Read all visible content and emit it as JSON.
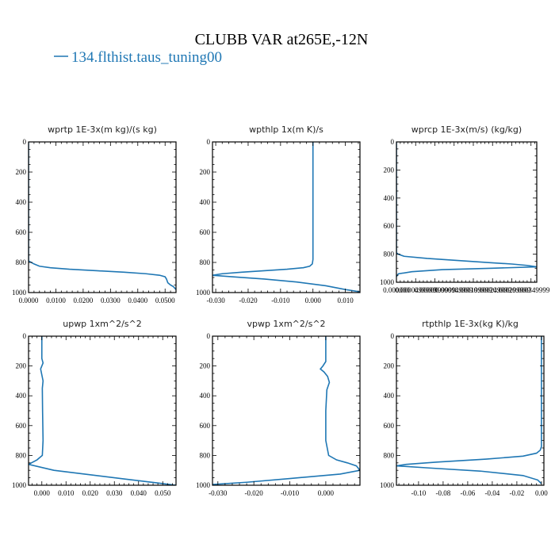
{
  "figure": {
    "title": "CLUBB VAR at265E,-12N",
    "legend": [
      {
        "label": "134.flthist.taus_tuning00",
        "color": "#1f77b4"
      }
    ]
  },
  "chart_data": [
    {
      "type": "line",
      "title": "wprtp  1E-3x(m kg)/(s kg)",
      "xlim": [
        0.0,
        0.054
      ],
      "ylim": [
        1000,
        0
      ],
      "xticks": [
        0.0,
        0.01,
        0.02,
        0.03,
        0.04,
        0.05
      ],
      "xtick_labels": [
        "0.0000",
        "0.0100",
        "0.0200",
        "0.0300",
        "0.0400",
        "0.0500"
      ],
      "yticks": [
        0,
        200,
        400,
        600,
        800,
        1000
      ],
      "series": [
        {
          "color": "#1f77b4",
          "x": [
            0.0,
            0.0,
            0.002,
            0.004,
            0.008,
            0.015,
            0.025,
            0.035,
            0.043,
            0.048,
            0.05,
            0.0505,
            0.051,
            0.052,
            0.053,
            0.054
          ],
          "y": [
            0,
            790,
            810,
            825,
            835,
            845,
            855,
            865,
            875,
            885,
            895,
            910,
            935,
            950,
            960,
            980
          ]
        }
      ]
    },
    {
      "type": "line",
      "title": "wpthlp  1x(m K)/s",
      "xlim": [
        -0.031,
        0.0145
      ],
      "ylim": [
        1000,
        0
      ],
      "xticks": [
        -0.03,
        -0.02,
        -0.01,
        0.0,
        0.01
      ],
      "xtick_labels": [
        "-0.030",
        "-0.020",
        "-0.010",
        "0.000",
        "0.010"
      ],
      "yticks": [
        0,
        200,
        400,
        600,
        800,
        1000
      ],
      "series": [
        {
          "color": "#1f77b4",
          "x": [
            0.0,
            0.0,
            -0.0002,
            -0.001,
            -0.003,
            -0.008,
            -0.015,
            -0.022,
            -0.028,
            -0.031,
            -0.025,
            -0.015,
            -0.005,
            0.004,
            0.01,
            0.0145
          ],
          "y": [
            0,
            780,
            810,
            825,
            835,
            845,
            855,
            865,
            875,
            885,
            895,
            910,
            930,
            955,
            980,
            995
          ]
        }
      ]
    },
    {
      "type": "line",
      "title": "wprcp  1E-3x(m/s) (kg/kg)",
      "xlim": [
        0.0,
        0.000365
      ],
      "ylim": [
        1000,
        0
      ],
      "xticks": [
        0.0,
        5e-05,
        0.0001,
        0.00015,
        0.0002,
        0.00025,
        0.0003,
        0.00035
      ],
      "xtick_labels": [
        "0.000000",
        "0.0000499999",
        "0.0000999999",
        "0.000149999",
        "0.000199999",
        "0.000249999",
        "0.000299999",
        "0.000349999"
      ],
      "yticks": [
        0,
        200,
        400,
        600,
        800,
        1000
      ],
      "series": [
        {
          "color": "#1f77b4",
          "x": [
            0.0,
            0.0,
            5e-06,
            2e-05,
            8e-05,
            0.00016,
            0.00024,
            0.0003,
            0.00034,
            0.000365,
            0.00025,
            0.00012,
            4e-05,
            5e-06,
            0.0
          ],
          "y": [
            0,
            790,
            800,
            815,
            830,
            845,
            860,
            870,
            880,
            890,
            900,
            910,
            925,
            940,
            960
          ]
        }
      ]
    },
    {
      "type": "line",
      "title": "upwp  1xm^2/s^2",
      "xlim": [
        -0.0055,
        0.0555
      ],
      "ylim": [
        1000,
        0
      ],
      "xticks": [
        0.0,
        0.01,
        0.02,
        0.03,
        0.04,
        0.05
      ],
      "xtick_labels": [
        "0.000",
        "0.010",
        "0.020",
        "0.030",
        "0.040",
        "0.050"
      ],
      "yticks": [
        0,
        200,
        400,
        600,
        800,
        1000
      ],
      "series": [
        {
          "color": "#1f77b4",
          "x": [
            0.0,
            0.0,
            0.0005,
            0.0,
            -0.0005,
            0.0,
            0.0005,
            0.0002,
            0.0003,
            0.0005,
            0.0002,
            -0.002,
            -0.0055,
            0.005,
            0.02,
            0.035,
            0.048,
            0.0555
          ],
          "y": [
            0,
            150,
            180,
            200,
            220,
            260,
            300,
            350,
            500,
            700,
            800,
            830,
            860,
            900,
            930,
            960,
            985,
            1000
          ]
        }
      ]
    },
    {
      "type": "line",
      "title": "vpwp  1xm^2/s^2",
      "xlim": [
        -0.0315,
        0.0095
      ],
      "ylim": [
        1000,
        0
      ],
      "xticks": [
        -0.03,
        -0.02,
        -0.01,
        0.0
      ],
      "xtick_labels": [
        "-0.030",
        "-0.020",
        "-0.010",
        "0.000"
      ],
      "yticks": [
        0,
        200,
        400,
        600,
        800,
        1000
      ],
      "series": [
        {
          "color": "#1f77b4",
          "x": [
            0.0,
            0.0,
            -0.0008,
            -0.0015,
            -0.0005,
            0.0005,
            0.001,
            0.0003,
            0.0,
            0.0,
            0.0008,
            0.003,
            0.006,
            0.0085,
            0.0095,
            0.004,
            -0.01,
            -0.022,
            -0.0315
          ],
          "y": [
            0,
            170,
            200,
            220,
            240,
            270,
            310,
            360,
            500,
            700,
            800,
            830,
            850,
            870,
            900,
            925,
            955,
            980,
            995
          ]
        }
      ]
    },
    {
      "type": "line",
      "title": "rtpthlp  1E-3x(kg K)/kg",
      "xlim": [
        -0.118,
        0.002
      ],
      "ylim": [
        1000,
        0
      ],
      "xticks": [
        -0.1,
        -0.08,
        -0.06,
        -0.04,
        -0.02,
        0.0
      ],
      "xtick_labels": [
        "-0.10",
        "-0.08",
        "-0.06",
        "-0.04",
        "-0.02",
        "0.00"
      ],
      "yticks": [
        0,
        200,
        400,
        600,
        800,
        1000
      ],
      "series": [
        {
          "color": "#1f77b4",
          "x": [
            0.0,
            0.0,
            -0.001,
            -0.004,
            -0.015,
            -0.045,
            -0.085,
            -0.11,
            -0.118,
            -0.09,
            -0.05,
            -0.015,
            -0.003,
            0.0
          ],
          "y": [
            0,
            740,
            765,
            785,
            805,
            825,
            845,
            860,
            870,
            885,
            905,
            935,
            965,
            990
          ]
        }
      ]
    }
  ]
}
